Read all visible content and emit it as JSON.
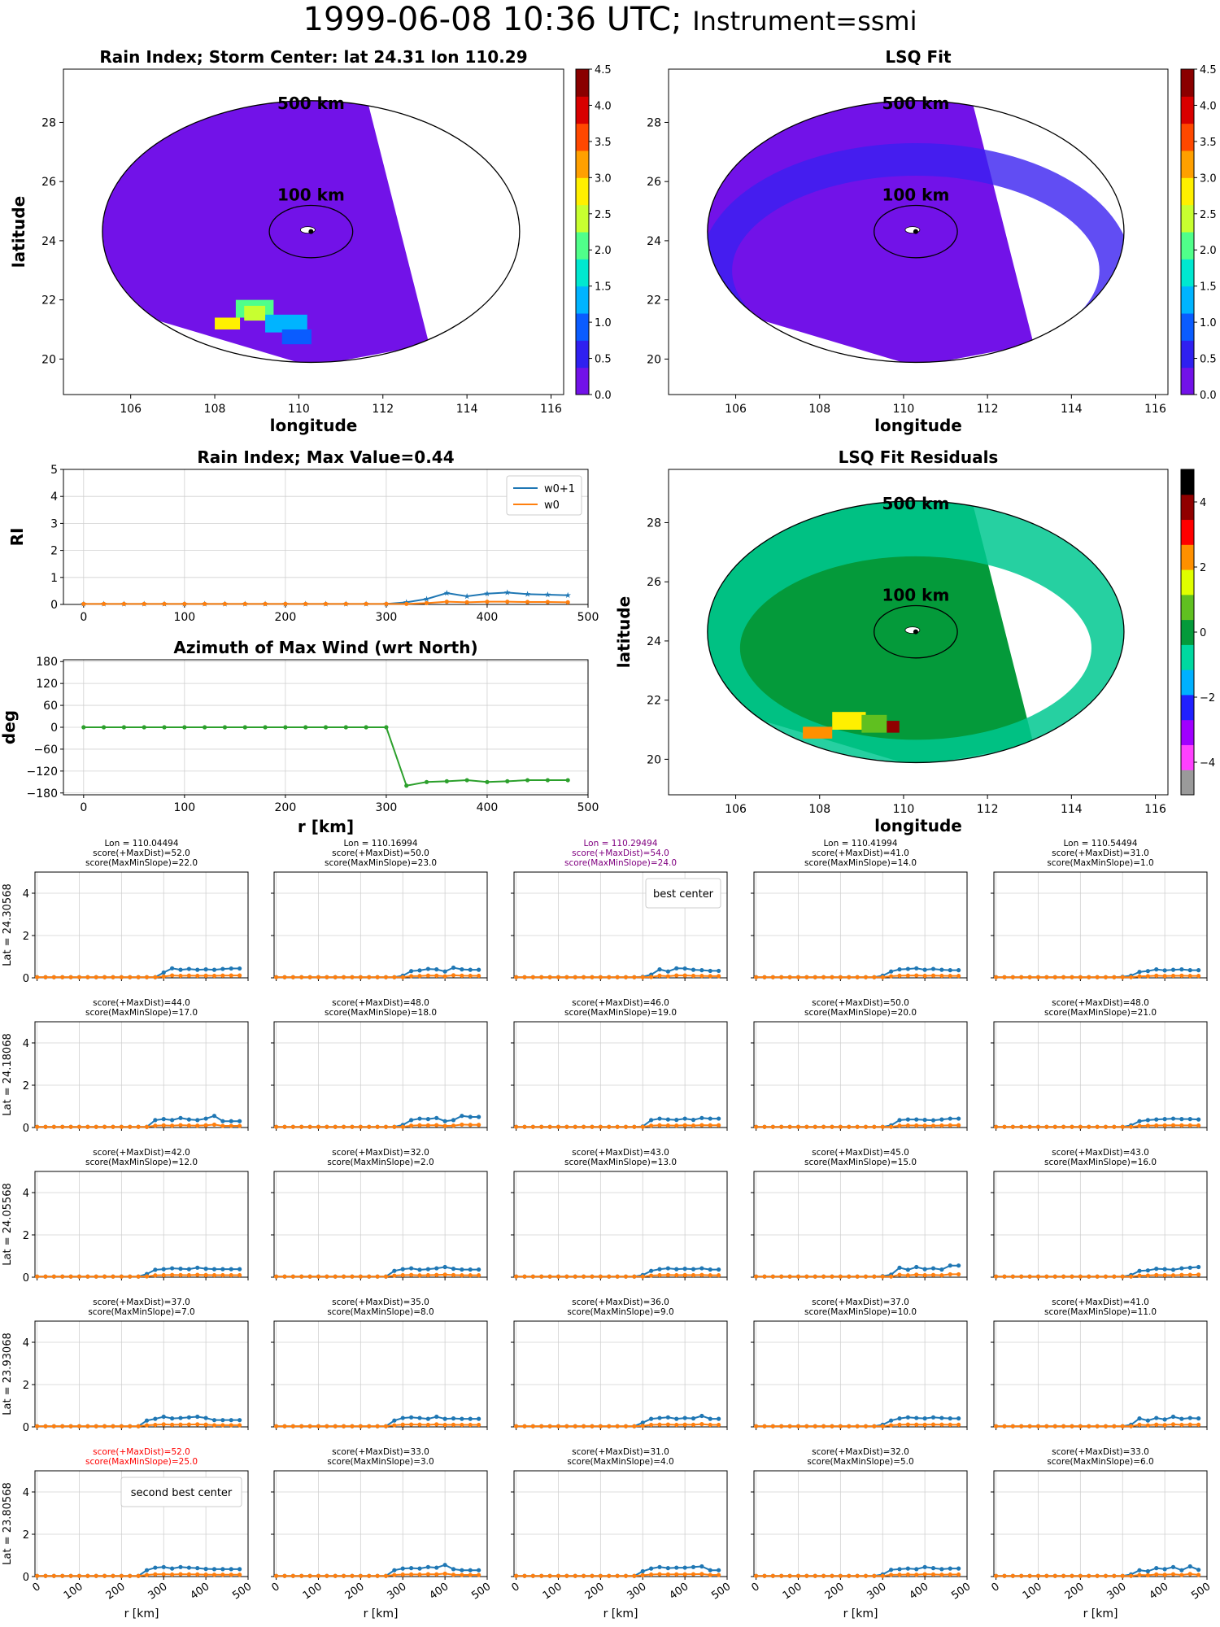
{
  "suptitle": {
    "date": "1999-06-08 10:36 UTC;",
    "instrument": "Instrument=ssmi"
  },
  "colors": {
    "w0p1": "#1f77b4",
    "w0": "#ff7f0e",
    "azimuth": "#2ca02c",
    "rain_bg": "#7212e8",
    "resid_bg": "#049a3a",
    "best": "#800080",
    "second": "#ff0000"
  },
  "maps": [
    {
      "title": "Rain Index; Storm Center: lat 24.31 lon 110.29",
      "xlabel": "longitude",
      "ylabel": "latitude",
      "ring_outer": "500 km",
      "ring_inner": "100 km",
      "colorbar_ticks": [
        "0.0",
        "0.5",
        "1.0",
        "1.5",
        "2.0",
        "2.5",
        "3.0",
        "3.5",
        "4.0",
        "4.5"
      ],
      "colormap": "jet-like"
    },
    {
      "title": "LSQ Fit",
      "xlabel": "longitude",
      "ylabel": "",
      "ring_outer": "500 km",
      "ring_inner": "100 km",
      "colorbar_ticks": [
        "0.0",
        "0.5",
        "1.0",
        "1.5",
        "2.0",
        "2.5",
        "3.0",
        "3.5",
        "4.0",
        "4.5"
      ],
      "colormap": "jet-like"
    },
    {
      "title": "LSQ Fit Residuals",
      "xlabel": "longitude",
      "ylabel": "latitude",
      "ring_outer": "500 km",
      "ring_inner": "100 km",
      "colorbar_ticks": [
        "−4",
        "−2",
        "0",
        "2",
        "4"
      ],
      "colormap": "diverging-spectral"
    }
  ],
  "map_axes": {
    "xlim": [
      104.4,
      116.3
    ],
    "ylim": [
      18.8,
      29.8
    ],
    "xticks": [
      106,
      108,
      110,
      112,
      114,
      116
    ],
    "yticks": [
      20,
      22,
      24,
      26,
      28
    ],
    "center": [
      110.29,
      24.31
    ]
  },
  "chart_data": [
    {
      "type": "line",
      "title": "Rain Index; Max Value=0.44",
      "xlabel": "",
      "ylabel": "RI",
      "xlim": [
        -20,
        500
      ],
      "ylim": [
        0,
        5
      ],
      "xticks": [
        0,
        100,
        200,
        300,
        400,
        500
      ],
      "yticks": [
        0,
        1,
        2,
        3,
        4,
        5
      ],
      "grid": true,
      "legend": "top-right",
      "x": [
        0,
        20,
        40,
        60,
        80,
        100,
        120,
        140,
        160,
        180,
        200,
        220,
        240,
        260,
        280,
        300,
        320,
        340,
        360,
        380,
        400,
        420,
        440,
        460,
        480
      ],
      "series": [
        {
          "name": "w0+1",
          "values": [
            0.02,
            0.02,
            0.02,
            0.02,
            0.02,
            0.02,
            0.02,
            0.02,
            0.02,
            0.02,
            0.02,
            0.02,
            0.02,
            0.02,
            0.02,
            0.02,
            0.08,
            0.2,
            0.42,
            0.3,
            0.4,
            0.44,
            0.38,
            0.36,
            0.34
          ]
        },
        {
          "name": "w0",
          "values": [
            0.02,
            0.02,
            0.02,
            0.02,
            0.02,
            0.02,
            0.02,
            0.02,
            0.02,
            0.02,
            0.02,
            0.02,
            0.02,
            0.02,
            0.02,
            0.02,
            0.02,
            0.05,
            0.1,
            0.08,
            0.1,
            0.1,
            0.09,
            0.09,
            0.08
          ]
        }
      ]
    },
    {
      "type": "line",
      "title": "Azimuth of Max Wind (wrt North)",
      "xlabel": "r [km]",
      "ylabel": "deg",
      "xlim": [
        -20,
        500
      ],
      "ylim": [
        -185,
        185
      ],
      "xticks": [
        0,
        100,
        200,
        300,
        400,
        500
      ],
      "yticks": [
        180,
        120,
        60,
        0,
        -60,
        -120,
        -180
      ],
      "grid": true,
      "x": [
        0,
        20,
        40,
        60,
        80,
        100,
        120,
        140,
        160,
        180,
        200,
        220,
        240,
        260,
        280,
        300,
        320,
        340,
        360,
        380,
        400,
        420,
        440,
        460,
        480
      ],
      "series": [
        {
          "values": [
            0,
            0,
            0,
            0,
            0,
            0,
            0,
            0,
            0,
            0,
            0,
            0,
            0,
            0,
            0,
            0,
            -160,
            -150,
            -148,
            -145,
            -150,
            -148,
            -145,
            -145,
            -145
          ]
        }
      ]
    },
    {
      "type": "line",
      "grid_layout": {
        "rows": 5,
        "cols": 5
      },
      "xlim": [
        -5,
        500
      ],
      "ylim": [
        0,
        5
      ],
      "xticks": [
        0,
        100,
        200,
        300,
        400,
        500
      ],
      "yticks": [
        0,
        2,
        4
      ],
      "xlabel": "r [km]",
      "x": [
        0,
        20,
        40,
        60,
        80,
        100,
        120,
        140,
        160,
        180,
        200,
        220,
        240,
        260,
        280,
        300,
        320,
        340,
        360,
        380,
        400,
        420,
        440,
        460,
        480
      ],
      "row_labels": [
        "Lat = 24.30568",
        "Lat = 24.18068",
        "Lat = 24.05568",
        "Lat = 23.93068",
        "Lat = 23.80568"
      ],
      "panels": [
        {
          "row": 0,
          "col": 0,
          "title": [
            "Lon = 110.04494",
            "score(+MaxDist)=52.0",
            "score(MaxMinSlope)=22.0"
          ],
          "style": "normal",
          "onset": 300,
          "w0p1": [
            0.25,
            0.45,
            0.38,
            0.42,
            0.38,
            0.4,
            0.38,
            0.42,
            0.44
          ]
        },
        {
          "row": 0,
          "col": 1,
          "title": [
            "Lon = 110.16994",
            "score(+MaxDist)=50.0",
            "score(MaxMinSlope)=23.0"
          ],
          "style": "normal",
          "onset": 300,
          "w0p1": [
            0.1,
            0.32,
            0.35,
            0.42,
            0.4,
            0.3,
            0.48,
            0.4,
            0.38
          ]
        },
        {
          "row": 0,
          "col": 2,
          "title": [
            "Lon = 110.29494",
            "score(+MaxDist)=54.0",
            "score(MaxMinSlope)=24.0"
          ],
          "style": "best",
          "legend": "best center",
          "onset": 300,
          "w0p1": [
            0.05,
            0.15,
            0.4,
            0.3,
            0.45,
            0.44,
            0.38,
            0.36,
            0.33
          ]
        },
        {
          "row": 0,
          "col": 3,
          "title": [
            "Lon = 110.41994",
            "score(+MaxDist)=41.0",
            "score(MaxMinSlope)=14.0"
          ],
          "style": "normal",
          "onset": 300,
          "w0p1": [
            0.1,
            0.3,
            0.4,
            0.42,
            0.45,
            0.38,
            0.42,
            0.38,
            0.36
          ]
        },
        {
          "row": 0,
          "col": 4,
          "title": [
            "Lon = 110.54494",
            "score(+MaxDist)=31.0",
            "score(MaxMinSlope)=1.0"
          ],
          "style": "normal",
          "onset": 300,
          "w0p1": [
            0.05,
            0.1,
            0.28,
            0.32,
            0.4,
            0.35,
            0.38,
            0.4,
            0.36
          ]
        },
        {
          "row": 1,
          "col": 0,
          "title": [
            "score(+MaxDist)=44.0",
            "score(MaxMinSlope)=17.0"
          ],
          "style": "normal",
          "onset": 280,
          "w0p1": [
            0.35,
            0.4,
            0.35,
            0.45,
            0.38,
            0.35,
            0.42,
            0.55,
            0.3
          ]
        },
        {
          "row": 1,
          "col": 1,
          "title": [
            "score(+MaxDist)=48.0",
            "score(MaxMinSlope)=18.0"
          ],
          "style": "normal",
          "onset": 300,
          "w0p1": [
            0.12,
            0.35,
            0.42,
            0.4,
            0.45,
            0.3,
            0.35,
            0.55,
            0.5
          ]
        },
        {
          "row": 1,
          "col": 2,
          "title": [
            "score(+MaxDist)=46.0",
            "score(MaxMinSlope)=19.0"
          ],
          "style": "normal",
          "onset": 300,
          "w0p1": [
            0.05,
            0.35,
            0.42,
            0.38,
            0.36,
            0.42,
            0.36,
            0.45,
            0.42
          ]
        },
        {
          "row": 1,
          "col": 3,
          "title": [
            "score(+MaxDist)=50.0",
            "score(MaxMinSlope)=20.0"
          ],
          "style": "normal",
          "onset": 320,
          "w0p1": [
            0.1,
            0.35,
            0.38,
            0.38,
            0.36,
            0.34,
            0.38,
            0.42,
            0.42
          ]
        },
        {
          "row": 1,
          "col": 4,
          "title": [
            "score(+MaxDist)=48.0",
            "score(MaxMinSlope)=21.0"
          ],
          "style": "normal",
          "onset": 320,
          "w0p1": [
            0.1,
            0.3,
            0.35,
            0.38,
            0.4,
            0.42,
            0.4,
            0.4,
            0.38
          ]
        },
        {
          "row": 2,
          "col": 0,
          "title": [
            "score(+MaxDist)=42.0",
            "score(MaxMinSlope)=12.0"
          ],
          "style": "normal",
          "onset": 260,
          "w0p1": [
            0.15,
            0.35,
            0.38,
            0.42,
            0.4,
            0.38,
            0.45,
            0.4,
            0.38
          ]
        },
        {
          "row": 2,
          "col": 1,
          "title": [
            "score(+MaxDist)=32.0",
            "score(MaxMinSlope)=2.0"
          ],
          "style": "normal",
          "onset": 280,
          "w0p1": [
            0.3,
            0.38,
            0.42,
            0.35,
            0.38,
            0.42,
            0.48,
            0.4,
            0.36
          ]
        },
        {
          "row": 2,
          "col": 2,
          "title": [
            "score(+MaxDist)=43.0",
            "score(MaxMinSlope)=13.0"
          ],
          "style": "normal",
          "onset": 300,
          "w0p1": [
            0.1,
            0.3,
            0.38,
            0.42,
            0.38,
            0.4,
            0.38,
            0.42,
            0.36
          ]
        },
        {
          "row": 2,
          "col": 3,
          "title": [
            "score(+MaxDist)=45.0",
            "score(MaxMinSlope)=15.0"
          ],
          "style": "normal",
          "onset": 300,
          "w0p1": [
            0.05,
            0.12,
            0.45,
            0.35,
            0.48,
            0.38,
            0.42,
            0.36,
            0.55
          ]
        },
        {
          "row": 2,
          "col": 4,
          "title": [
            "score(+MaxDist)=43.0",
            "score(MaxMinSlope)=16.0"
          ],
          "style": "normal",
          "onset": 320,
          "w0p1": [
            0.1,
            0.3,
            0.32,
            0.4,
            0.38,
            0.35,
            0.42,
            0.45,
            0.48
          ]
        },
        {
          "row": 3,
          "col": 0,
          "title": [
            "score(+MaxDist)=37.0",
            "score(MaxMinSlope)=7.0"
          ],
          "style": "normal",
          "onset": 260,
          "w0p1": [
            0.3,
            0.38,
            0.48,
            0.4,
            0.42,
            0.45,
            0.48,
            0.42,
            0.32
          ]
        },
        {
          "row": 3,
          "col": 1,
          "title": [
            "score(+MaxDist)=35.0",
            "score(MaxMinSlope)=8.0"
          ],
          "style": "normal",
          "onset": 280,
          "w0p1": [
            0.3,
            0.42,
            0.45,
            0.42,
            0.38,
            0.48,
            0.38,
            0.4,
            0.38
          ]
        },
        {
          "row": 3,
          "col": 2,
          "title": [
            "score(+MaxDist)=36.0",
            "score(MaxMinSlope)=9.0"
          ],
          "style": "normal",
          "onset": 300,
          "w0p1": [
            0.2,
            0.38,
            0.42,
            0.45,
            0.38,
            0.42,
            0.4,
            0.52,
            0.38
          ]
        },
        {
          "row": 3,
          "col": 3,
          "title": [
            "score(+MaxDist)=37.0",
            "score(MaxMinSlope)=10.0"
          ],
          "style": "normal",
          "onset": 300,
          "w0p1": [
            0.1,
            0.3,
            0.4,
            0.45,
            0.42,
            0.4,
            0.45,
            0.42,
            0.4
          ]
        },
        {
          "row": 3,
          "col": 4,
          "title": [
            "score(+MaxDist)=41.0",
            "score(MaxMinSlope)=11.0"
          ],
          "style": "normal",
          "onset": 320,
          "w0p1": [
            0.1,
            0.4,
            0.3,
            0.42,
            0.35,
            0.48,
            0.38,
            0.42,
            0.4
          ]
        },
        {
          "row": 4,
          "col": 0,
          "title": [
            "score(+MaxDist)=52.0",
            "score(MaxMinSlope)=25.0"
          ],
          "style": "second",
          "legend": "second best center",
          "onset": 260,
          "w0p1": [
            0.3,
            0.42,
            0.45,
            0.38,
            0.45,
            0.42,
            0.4,
            0.36,
            0.35
          ]
        },
        {
          "row": 4,
          "col": 1,
          "title": [
            "score(+MaxDist)=33.0",
            "score(MaxMinSlope)=3.0"
          ],
          "style": "normal",
          "onset": 280,
          "w0p1": [
            0.3,
            0.38,
            0.4,
            0.38,
            0.45,
            0.42,
            0.55,
            0.35,
            0.3
          ]
        },
        {
          "row": 4,
          "col": 2,
          "title": [
            "score(+MaxDist)=31.0",
            "score(MaxMinSlope)=4.0"
          ],
          "style": "normal",
          "onset": 300,
          "w0p1": [
            0.25,
            0.38,
            0.45,
            0.4,
            0.42,
            0.42,
            0.45,
            0.48,
            0.3
          ]
        },
        {
          "row": 4,
          "col": 3,
          "title": [
            "score(+MaxDist)=32.0",
            "score(MaxMinSlope)=5.0"
          ],
          "style": "normal",
          "onset": 300,
          "w0p1": [
            0.1,
            0.32,
            0.35,
            0.38,
            0.35,
            0.45,
            0.4,
            0.35,
            0.38
          ]
        },
        {
          "row": 4,
          "col": 4,
          "title": [
            "score(+MaxDist)=33.0",
            "score(MaxMinSlope)=6.0"
          ],
          "style": "normal",
          "onset": 320,
          "w0p1": [
            0.1,
            0.3,
            0.25,
            0.4,
            0.35,
            0.45,
            0.3,
            0.48,
            0.32
          ]
        }
      ]
    }
  ]
}
